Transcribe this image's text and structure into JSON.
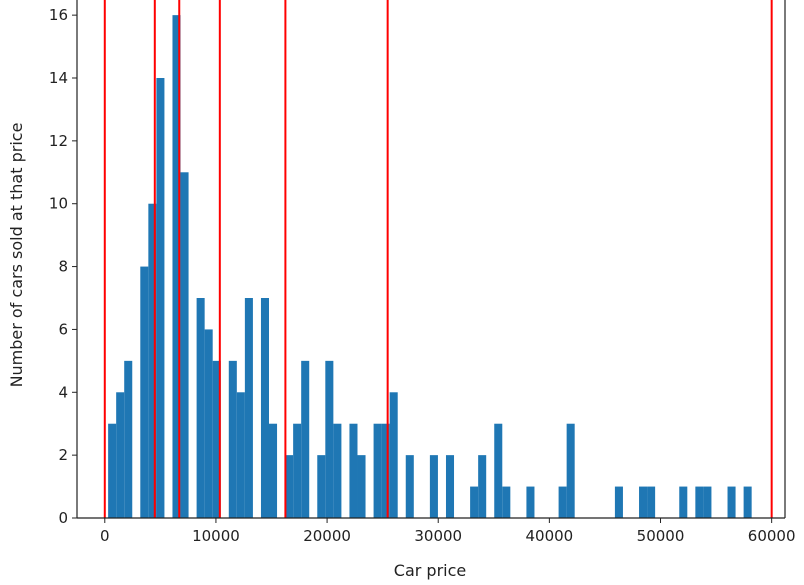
{
  "chart_data": {
    "type": "bar",
    "subtype": "histogram",
    "xlabel": "Car price",
    "ylabel": "Number of cars sold at that price",
    "xlim": [
      -2500,
      61200
    ],
    "ylim": [
      0,
      16.8
    ],
    "xticks": [
      0,
      10000,
      20000,
      30000,
      40000,
      50000,
      60000
    ],
    "xtick_labels": [
      "0",
      "10000",
      "20000",
      "30000",
      "40000",
      "50000",
      "60000"
    ],
    "yticks": [
      0,
      2,
      4,
      6,
      8,
      10,
      12,
      14,
      16
    ],
    "ytick_labels": [
      "0",
      "2",
      "4",
      "6",
      "8",
      "10",
      "12",
      "14",
      "16"
    ],
    "bins": {
      "start": 300,
      "end": 58200,
      "count": 80
    },
    "counts": [
      3,
      4,
      5,
      0,
      8,
      10,
      14,
      0,
      16,
      11,
      0,
      7,
      6,
      5,
      0,
      5,
      4,
      7,
      0,
      7,
      3,
      0,
      2,
      3,
      5,
      0,
      2,
      5,
      3,
      0,
      3,
      2,
      0,
      3,
      3,
      4,
      0,
      2,
      0,
      0,
      2,
      0,
      2,
      0,
      0,
      1,
      2,
      0,
      3,
      1,
      0,
      0,
      1,
      0,
      0,
      0,
      1,
      3,
      0,
      0,
      0,
      0,
      0,
      1,
      0,
      0,
      1,
      1,
      0,
      0,
      0,
      1,
      0,
      1,
      1,
      0,
      0,
      1,
      0,
      1
    ],
    "vertical_lines": [
      0,
      4500,
      6700,
      10350,
      16250,
      25450,
      60000
    ],
    "grid": false,
    "colors": {
      "bars": "#1f77b4",
      "vertical_lines": "#ff0000",
      "axes": "#222222"
    }
  }
}
